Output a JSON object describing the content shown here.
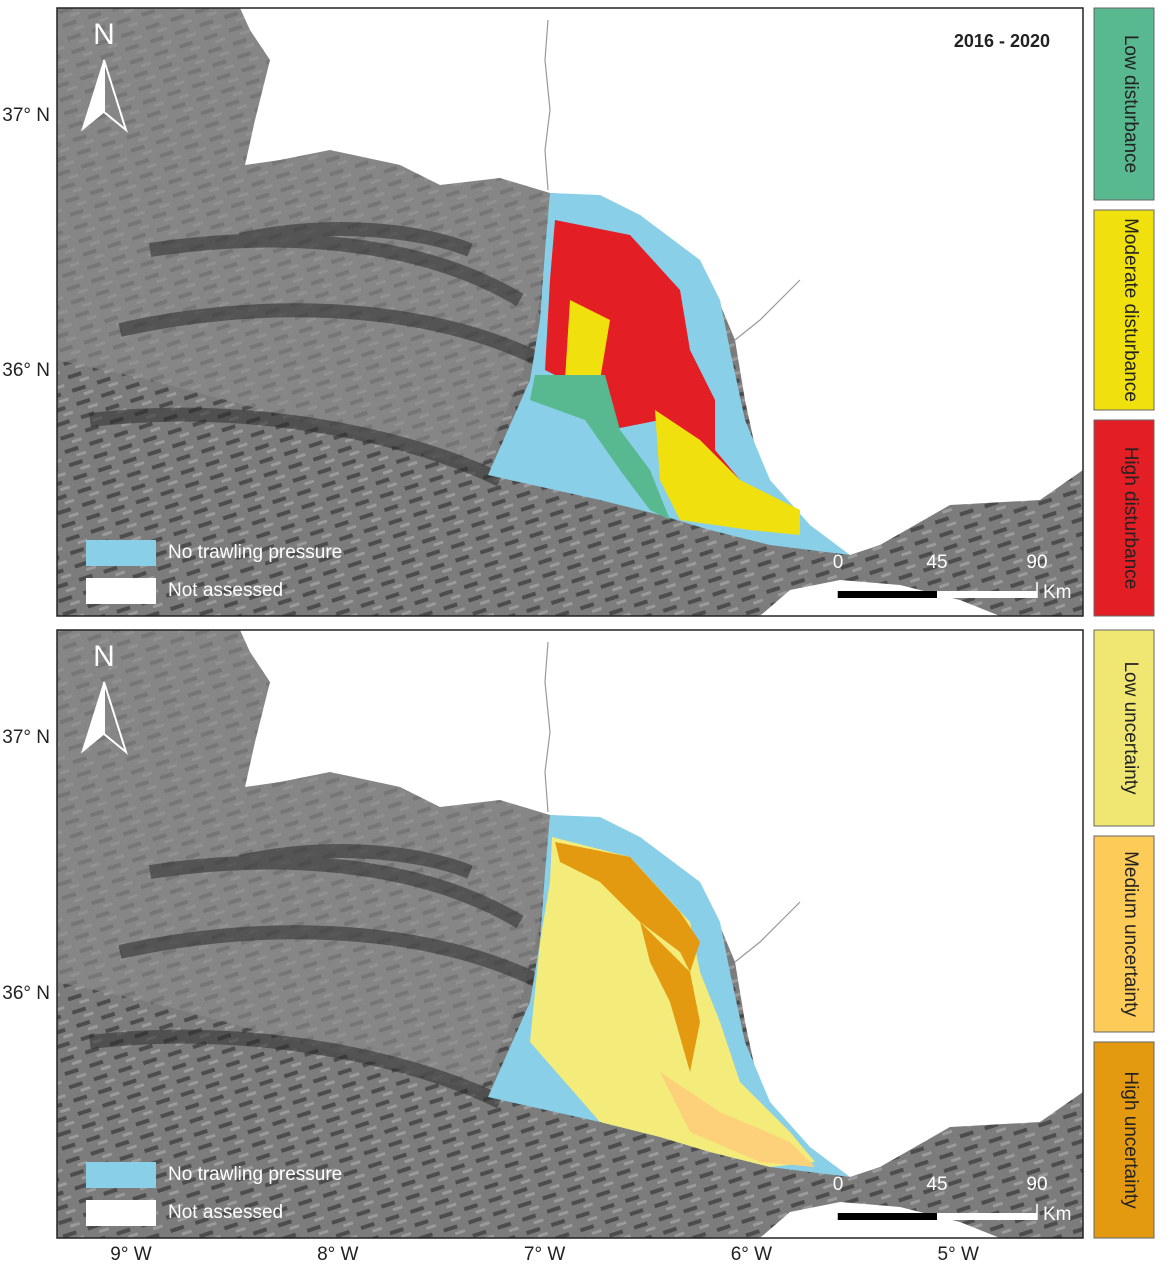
{
  "panels": [
    {
      "title": "2016 - 2020",
      "north": "N",
      "lat_labels": [
        "37° N",
        "36° N"
      ],
      "legend": [
        "No trawling pressure",
        "Not assessed"
      ],
      "scale": {
        "ticks": [
          0,
          45,
          90
        ],
        "unit": "Km"
      }
    },
    {
      "north": "N",
      "lat_labels": [
        "37° N",
        "36° N"
      ],
      "legend": [
        "No trawling pressure",
        "Not assessed"
      ],
      "scale": {
        "ticks": [
          0,
          45,
          90
        ],
        "unit": "Km"
      }
    }
  ],
  "lon_labels": [
    "9° W",
    "8° W",
    "7° W",
    "6° W",
    "5° W"
  ],
  "side_legend": [
    "Low disturbance",
    "Moderate disturbance",
    "High disturbance",
    "Low uncertainty",
    "Medium uncertainty",
    "High uncertainty"
  ]
}
